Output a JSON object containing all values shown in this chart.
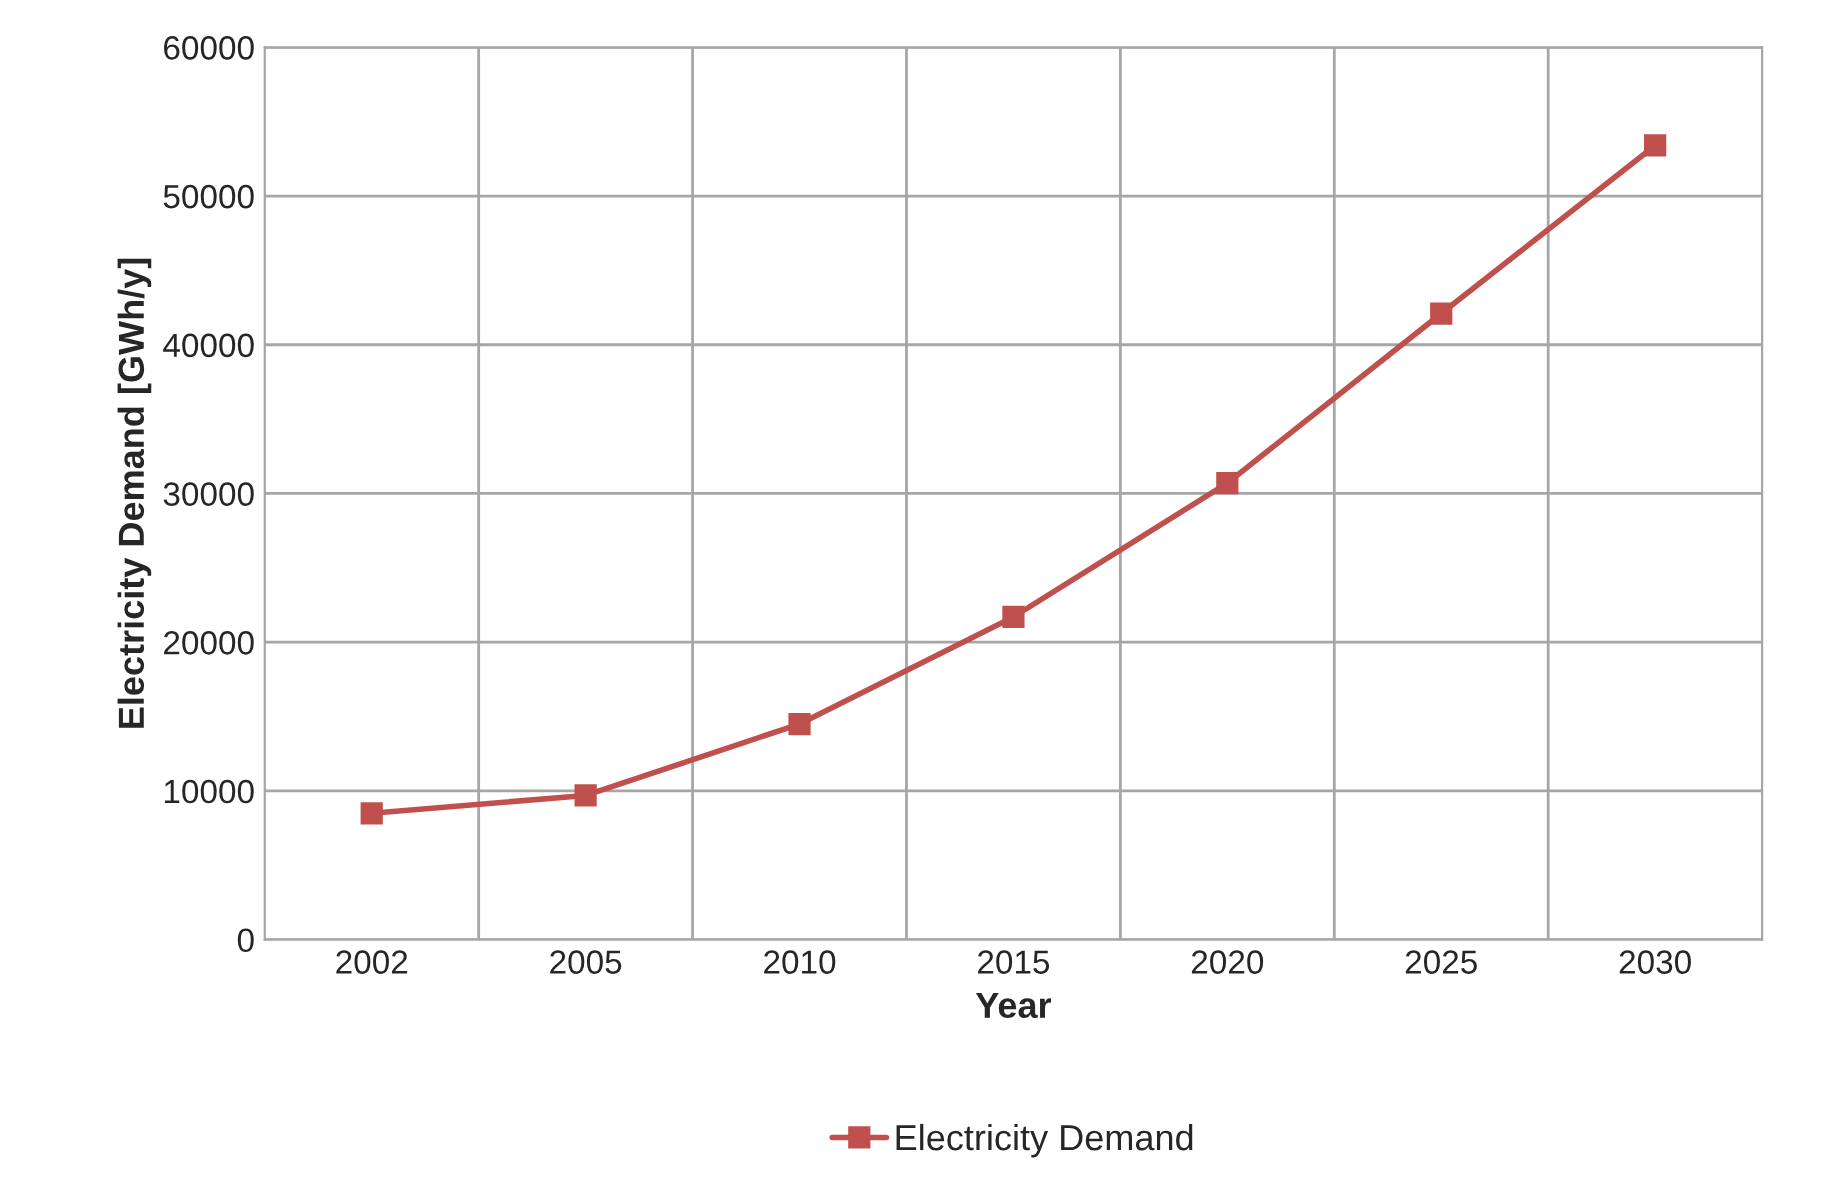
{
  "chart_data": {
    "type": "line",
    "xlabel": "Year",
    "ylabel": "Electricity Demand [GWh/y]",
    "categories": [
      "2002",
      "2005",
      "2010",
      "2015",
      "2020",
      "2025",
      "2030"
    ],
    "series": [
      {
        "name": "Electricity Demand",
        "color": "#c0504d",
        "values": [
          8500,
          9700,
          14500,
          21700,
          30700,
          42100,
          53400
        ]
      }
    ],
    "ylim": [
      0,
      60000
    ],
    "yticks": [
      0,
      10000,
      20000,
      30000,
      40000,
      50000,
      60000
    ],
    "grid": true,
    "legend": "bottom",
    "marker": "square",
    "line_style": "solid"
  }
}
